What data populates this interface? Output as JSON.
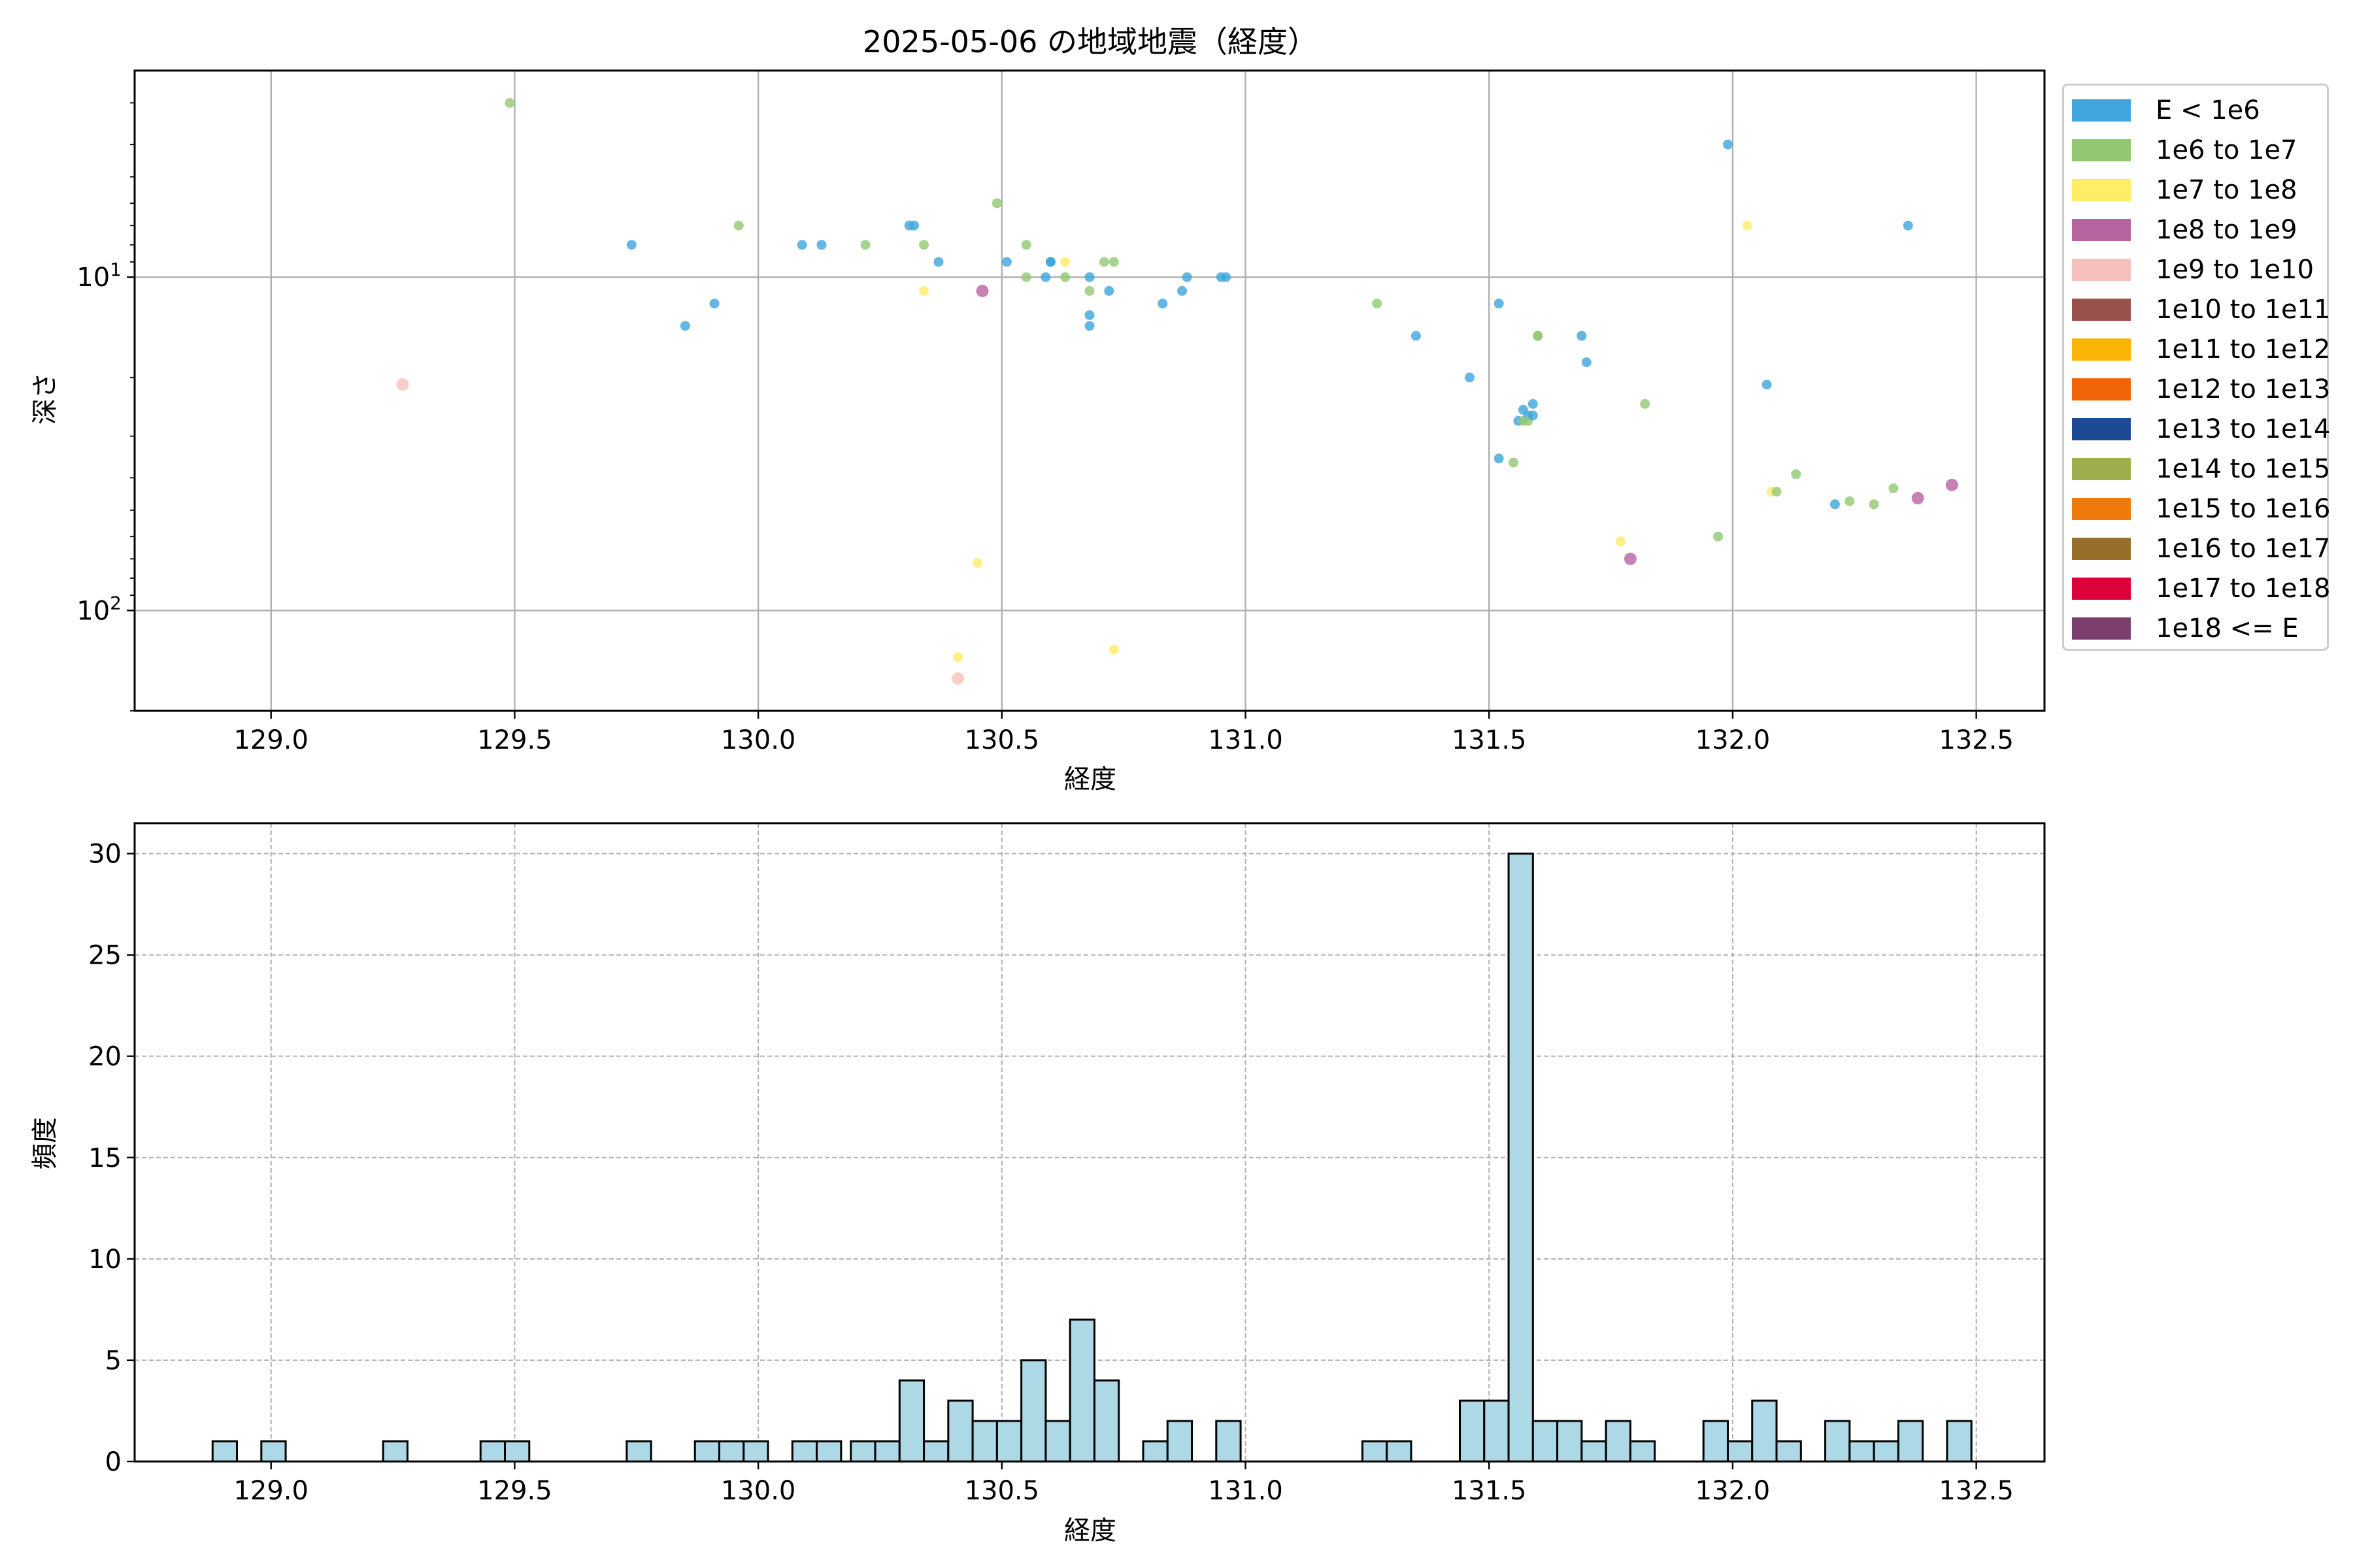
{
  "chart_data": [
    {
      "type": "scatter",
      "title": "2025-05-06 の地域地震（経度）",
      "xlabel": "経度",
      "ylabel": "深さ",
      "xlim": [
        128.72,
        132.64
      ],
      "ylim": [
        200,
        2.4
      ],
      "yscale": "log",
      "y_inverted": true,
      "grid": true,
      "legend_position": "outside-right",
      "x_ticks": [
        "129.0",
        "129.5",
        "130.0",
        "130.5",
        "131.0",
        "131.5",
        "132.0",
        "132.5"
      ],
      "y_ticks": [
        {
          "value": 10,
          "label": "10^1"
        },
        {
          "value": 100,
          "label": "10^2"
        }
      ],
      "legend": [
        {
          "label": "E < 1e6",
          "color": "#3fa5dc"
        },
        {
          "label": "1e6 to 1e7",
          "color": "#92c871"
        },
        {
          "label": "1e7 to 1e8",
          "color": "#ffec67"
        },
        {
          "label": "1e8 to 1e9",
          "color": "#b6639f"
        },
        {
          "label": "1e9 to 1e10",
          "color": "#f6c0bd"
        },
        {
          "label": "1e10 to 1e11",
          "color": "#9a514c"
        },
        {
          "label": "1e11 to 1e12",
          "color": "#fab505"
        },
        {
          "label": "1e12 to 1e13",
          "color": "#ee6406"
        },
        {
          "label": "1e13 to 1e14",
          "color": "#1c4b94"
        },
        {
          "label": "1e14 to 1e15",
          "color": "#9dae4e"
        },
        {
          "label": "1e15 to 1e16",
          "color": "#ee7b09"
        },
        {
          "label": "1e16 to 1e17",
          "color": "#976e2a"
        },
        {
          "label": "1e17 to 1e18",
          "color": "#dc0139"
        },
        {
          "label": "1e18 <= E",
          "color": "#7b3f6e"
        }
      ],
      "points": [
        {
          "x": 129.49,
          "y": 3.0,
          "c": 1
        },
        {
          "x": 129.27,
          "y": 21,
          "c": 4
        },
        {
          "x": 129.74,
          "y": 8,
          "c": 0
        },
        {
          "x": 129.85,
          "y": 14,
          "c": 0
        },
        {
          "x": 129.91,
          "y": 12,
          "c": 0
        },
        {
          "x": 129.96,
          "y": 7,
          "c": 1
        },
        {
          "x": 130.09,
          "y": 8,
          "c": 0
        },
        {
          "x": 130.13,
          "y": 8,
          "c": 0
        },
        {
          "x": 130.22,
          "y": 8,
          "c": 1
        },
        {
          "x": 130.31,
          "y": 7,
          "c": 0
        },
        {
          "x": 130.32,
          "y": 7,
          "c": 0
        },
        {
          "x": 130.34,
          "y": 8,
          "c": 1
        },
        {
          "x": 130.37,
          "y": 9,
          "c": 0
        },
        {
          "x": 130.34,
          "y": 11,
          "c": 2
        },
        {
          "x": 130.46,
          "y": 11,
          "c": 3
        },
        {
          "x": 130.49,
          "y": 6,
          "c": 1
        },
        {
          "x": 130.51,
          "y": 9,
          "c": 0
        },
        {
          "x": 130.55,
          "y": 8,
          "c": 1
        },
        {
          "x": 130.55,
          "y": 10,
          "c": 1
        },
        {
          "x": 130.59,
          "y": 10,
          "c": 0
        },
        {
          "x": 130.6,
          "y": 9,
          "c": 0
        },
        {
          "x": 130.6,
          "y": 9,
          "c": 0
        },
        {
          "x": 130.63,
          "y": 9,
          "c": 2
        },
        {
          "x": 130.63,
          "y": 10,
          "c": 1
        },
        {
          "x": 130.68,
          "y": 10,
          "c": 0
        },
        {
          "x": 130.68,
          "y": 11,
          "c": 1
        },
        {
          "x": 130.68,
          "y": 13,
          "c": 0
        },
        {
          "x": 130.68,
          "y": 14,
          "c": 0
        },
        {
          "x": 130.71,
          "y": 9,
          "c": 1
        },
        {
          "x": 130.73,
          "y": 9,
          "c": 1
        },
        {
          "x": 130.72,
          "y": 11,
          "c": 0
        },
        {
          "x": 130.83,
          "y": 12,
          "c": 0
        },
        {
          "x": 130.87,
          "y": 11,
          "c": 0
        },
        {
          "x": 130.88,
          "y": 10,
          "c": 0
        },
        {
          "x": 130.95,
          "y": 10,
          "c": 0
        },
        {
          "x": 130.96,
          "y": 10,
          "c": 0
        },
        {
          "x": 130.45,
          "y": 72,
          "c": 2
        },
        {
          "x": 130.41,
          "y": 138,
          "c": 2
        },
        {
          "x": 130.73,
          "y": 131,
          "c": 2
        },
        {
          "x": 130.41,
          "y": 160,
          "c": 4
        },
        {
          "x": 131.27,
          "y": 12,
          "c": 1
        },
        {
          "x": 131.35,
          "y": 15,
          "c": 0
        },
        {
          "x": 131.46,
          "y": 20,
          "c": 0
        },
        {
          "x": 131.52,
          "y": 12,
          "c": 0
        },
        {
          "x": 131.52,
          "y": 35,
          "c": 0
        },
        {
          "x": 131.55,
          "y": 36,
          "c": 1
        },
        {
          "x": 131.56,
          "y": 27,
          "c": 0
        },
        {
          "x": 131.57,
          "y": 25,
          "c": 0
        },
        {
          "x": 131.57,
          "y": 27,
          "c": 1
        },
        {
          "x": 131.58,
          "y": 26,
          "c": 0
        },
        {
          "x": 131.59,
          "y": 24,
          "c": 0
        },
        {
          "x": 131.58,
          "y": 27,
          "c": 1
        },
        {
          "x": 131.59,
          "y": 26,
          "c": 0
        },
        {
          "x": 131.6,
          "y": 15,
          "c": 1
        },
        {
          "x": 131.6,
          "y": 15,
          "c": 1
        },
        {
          "x": 131.69,
          "y": 15,
          "c": 0
        },
        {
          "x": 131.7,
          "y": 18,
          "c": 0
        },
        {
          "x": 131.77,
          "y": 62,
          "c": 2
        },
        {
          "x": 131.79,
          "y": 70,
          "c": 3
        },
        {
          "x": 131.82,
          "y": 24,
          "c": 1
        },
        {
          "x": 131.97,
          "y": 60,
          "c": 1
        },
        {
          "x": 131.99,
          "y": 4,
          "c": 0
        },
        {
          "x": 132.03,
          "y": 7,
          "c": 2
        },
        {
          "x": 132.07,
          "y": 21,
          "c": 0
        },
        {
          "x": 132.08,
          "y": 44,
          "c": 2
        },
        {
          "x": 132.09,
          "y": 44,
          "c": 1
        },
        {
          "x": 132.13,
          "y": 39,
          "c": 1
        },
        {
          "x": 132.21,
          "y": 48,
          "c": 0
        },
        {
          "x": 132.24,
          "y": 47,
          "c": 1
        },
        {
          "x": 132.29,
          "y": 48,
          "c": 1
        },
        {
          "x": 132.33,
          "y": 43,
          "c": 1
        },
        {
          "x": 132.36,
          "y": 7,
          "c": 0
        },
        {
          "x": 132.38,
          "y": 46,
          "c": 3
        },
        {
          "x": 132.45,
          "y": 42,
          "c": 3
        }
      ]
    },
    {
      "type": "bar",
      "title": "",
      "xlabel": "経度",
      "ylabel": "頻度",
      "xlim": [
        128.72,
        132.64
      ],
      "ylim": [
        0,
        31.5
      ],
      "grid": true,
      "bar_color": "#add8e6",
      "x_ticks": [
        "129.0",
        "129.5",
        "130.0",
        "130.5",
        "131.0",
        "131.5",
        "132.0",
        "132.5"
      ],
      "y_ticks": [
        "0",
        "5",
        "10",
        "15",
        "20",
        "25",
        "30"
      ],
      "bin_width": 0.05,
      "bins": [
        {
          "x0": 128.88,
          "count": 1
        },
        {
          "x0": 128.98,
          "count": 1
        },
        {
          "x0": 129.23,
          "count": 1
        },
        {
          "x0": 129.43,
          "count": 1
        },
        {
          "x0": 129.48,
          "count": 1
        },
        {
          "x0": 129.73,
          "count": 1
        },
        {
          "x0": 129.87,
          "count": 1
        },
        {
          "x0": 129.92,
          "count": 1
        },
        {
          "x0": 129.97,
          "count": 1
        },
        {
          "x0": 130.07,
          "count": 1
        },
        {
          "x0": 130.12,
          "count": 1
        },
        {
          "x0": 130.19,
          "count": 1
        },
        {
          "x0": 130.24,
          "count": 1
        },
        {
          "x0": 130.29,
          "count": 4
        },
        {
          "x0": 130.34,
          "count": 1
        },
        {
          "x0": 130.39,
          "count": 3
        },
        {
          "x0": 130.44,
          "count": 2
        },
        {
          "x0": 130.49,
          "count": 2
        },
        {
          "x0": 130.54,
          "count": 5
        },
        {
          "x0": 130.59,
          "count": 2
        },
        {
          "x0": 130.64,
          "count": 7
        },
        {
          "x0": 130.69,
          "count": 4
        },
        {
          "x0": 130.79,
          "count": 1
        },
        {
          "x0": 130.84,
          "count": 2
        },
        {
          "x0": 130.94,
          "count": 2
        },
        {
          "x0": 131.24,
          "count": 1
        },
        {
          "x0": 131.29,
          "count": 1
        },
        {
          "x0": 131.44,
          "count": 3
        },
        {
          "x0": 131.49,
          "count": 3
        },
        {
          "x0": 131.54,
          "count": 30
        },
        {
          "x0": 131.59,
          "count": 2
        },
        {
          "x0": 131.64,
          "count": 2
        },
        {
          "x0": 131.69,
          "count": 1
        },
        {
          "x0": 131.74,
          "count": 2
        },
        {
          "x0": 131.79,
          "count": 1
        },
        {
          "x0": 131.94,
          "count": 2
        },
        {
          "x0": 131.99,
          "count": 1
        },
        {
          "x0": 132.04,
          "count": 3
        },
        {
          "x0": 132.09,
          "count": 1
        },
        {
          "x0": 132.19,
          "count": 2
        },
        {
          "x0": 132.24,
          "count": 1
        },
        {
          "x0": 132.29,
          "count": 1
        },
        {
          "x0": 132.34,
          "count": 2
        },
        {
          "x0": 132.44,
          "count": 2
        }
      ]
    }
  ]
}
